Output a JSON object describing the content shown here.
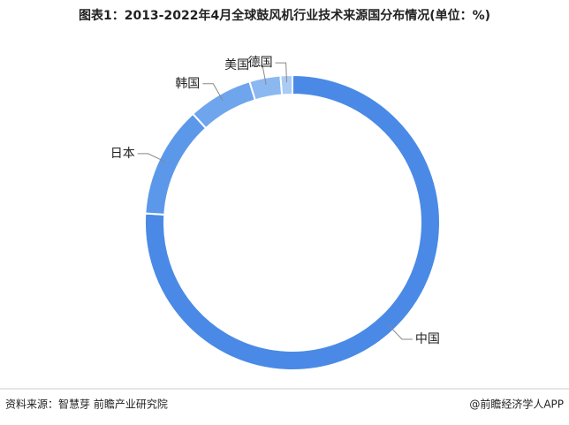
{
  "chart_data": {
    "type": "donut",
    "title": "图表1：2013-2022年4月全球鼓风机行业技术来源国分布情况(单位：%)",
    "categories": [
      "中国",
      "日本",
      "韩国",
      "美国",
      "德国"
    ],
    "values": [
      76,
      12.2,
      7.1,
      3.4,
      1.3
    ],
    "colors": [
      "#4a8ae6",
      "#5c98e9",
      "#6fa5ec",
      "#8bb8f1",
      "#aacbf5"
    ]
  },
  "source": "资料来源：智慧芽 前瞻产业研究院",
  "credit": "@前瞻经济学人APP"
}
